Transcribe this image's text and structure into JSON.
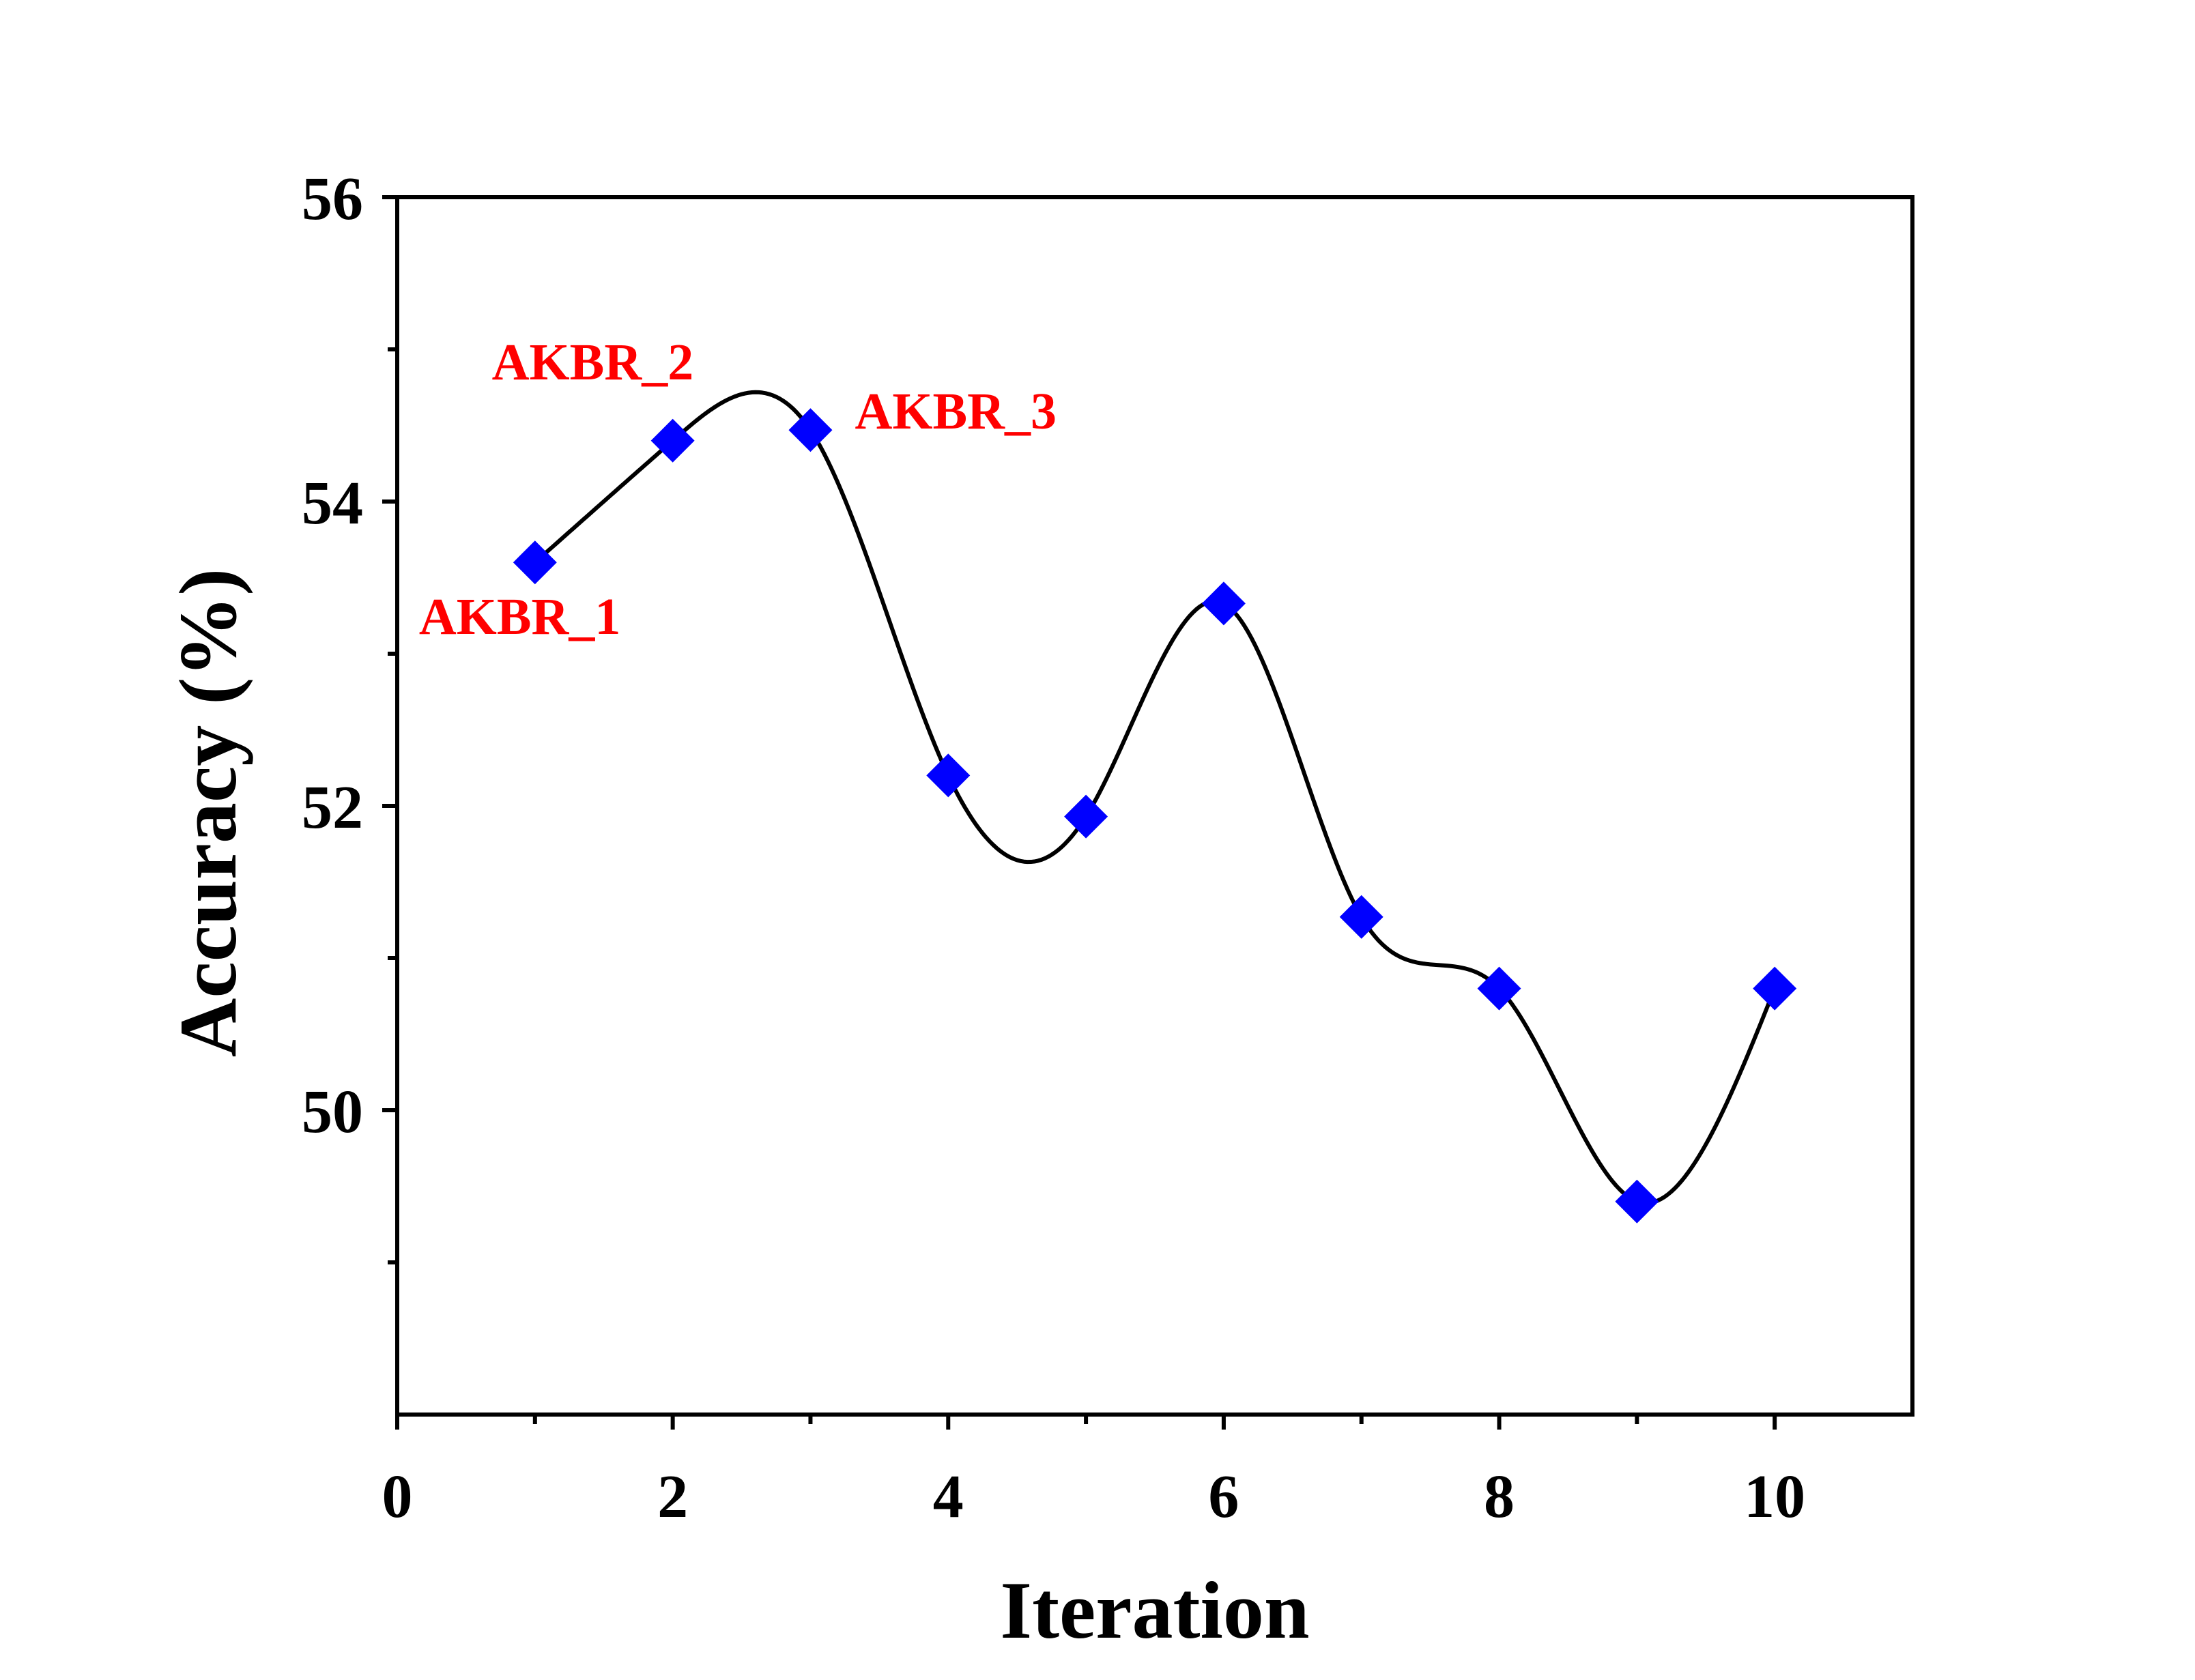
{
  "chart_data": {
    "type": "line",
    "title": "",
    "xlabel": "Iteration",
    "ylabel": "Accuracy (%)",
    "xlim": [
      0,
      11
    ],
    "ylim": [
      48,
      56
    ],
    "x_major_ticks": [
      0,
      2,
      4,
      6,
      8,
      10
    ],
    "x_minor_ticks": [
      1,
      3,
      5,
      7,
      9
    ],
    "y_major_ticks": [
      50,
      52,
      54,
      56
    ],
    "y_minor_ticks": [
      49,
      51,
      53,
      55
    ],
    "x_tick_labels": [
      "0",
      "2",
      "4",
      "6",
      "8",
      "10"
    ],
    "y_tick_labels": [
      "50",
      "52",
      "54",
      "56"
    ],
    "grid": false,
    "line_style": "smooth spline",
    "marker": "diamond",
    "series": [
      {
        "x": [
          1,
          2,
          3,
          4,
          5,
          6,
          7,
          8,
          9,
          10
        ],
        "values": [
          53.6,
          54.4,
          54.47,
          52.2,
          51.93,
          53.33,
          51.27,
          50.8,
          49.4,
          50.8
        ]
      }
    ],
    "annotations": [
      {
        "text": "AKBR_1",
        "x": 1,
        "y": 53.6
      },
      {
        "text": "AKBR_2",
        "x": 2,
        "y": 54.4
      },
      {
        "text": "AKBR_3",
        "x": 3,
        "y": 54.47
      }
    ],
    "colors": {
      "marker": "#0000ff",
      "line": "#000000",
      "annotation": "#ff0000",
      "axis": "#000000"
    }
  }
}
